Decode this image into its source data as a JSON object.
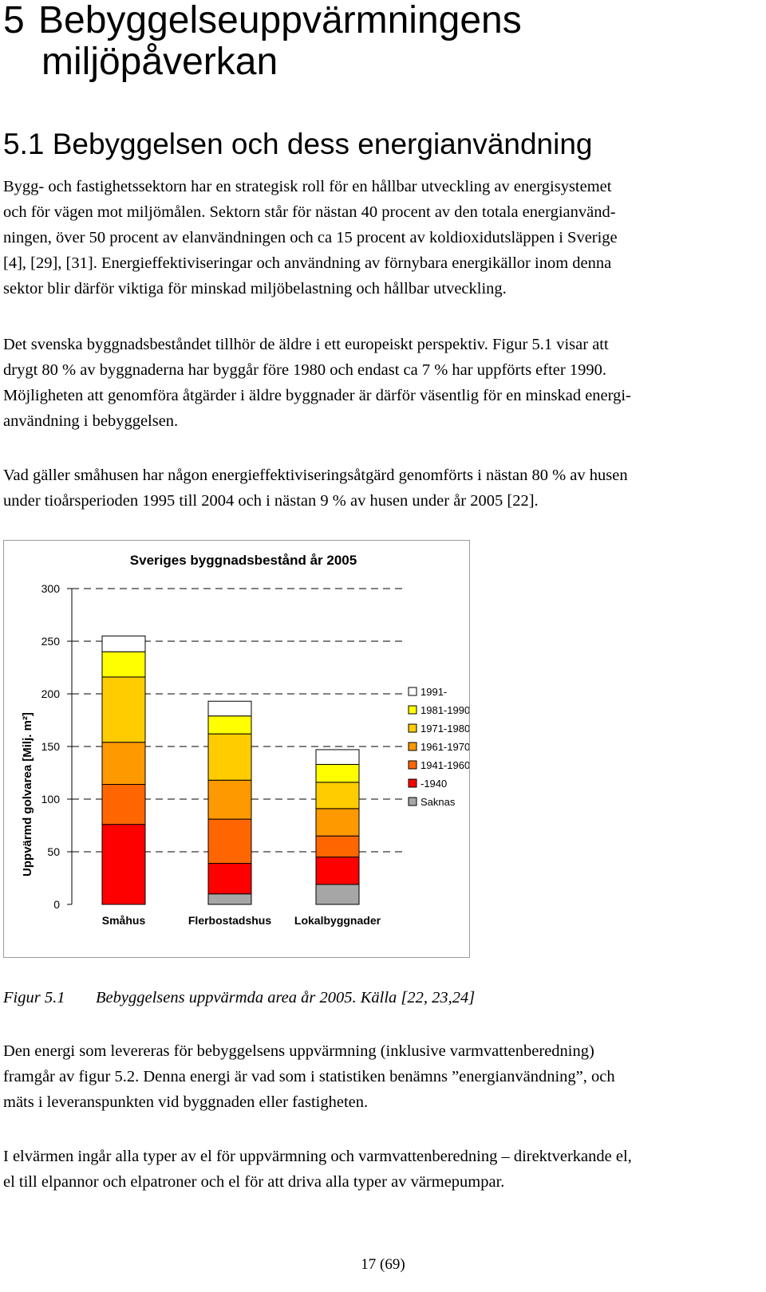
{
  "heading1": {
    "number": "5",
    "line1": "Bebyggelseuppvärmningens",
    "line2": "miljöpåverkan"
  },
  "heading2": "5.1 Bebyggelsen och dess energianvändning",
  "paragraphs": [
    [
      "Bygg- och fastighetssektorn har en strategisk roll för en hållbar utveckling av energisystemet",
      "och för vägen mot miljömålen. Sektorn står för nästan 40 procent av den totala energianvänd-",
      "ningen, över 50 procent av elanvändningen och ca 15 procent av koldioxidutsläppen i Sverige",
      "[4], [29], [31]. Energieffektiviseringar och användning av förnybara energikällor inom denna",
      "sektor blir därför viktiga för minskad miljöbelastning och hållbar utveckling."
    ],
    [
      "Det svenska byggnadsbeståndet tillhör de äldre i ett europeiskt perspektiv. Figur 5.1 visar att",
      "drygt 80 % av byggnaderna har byggår före 1980 och endast ca 7 % har uppförts efter 1990.",
      "Möjligheten att genomföra åtgärder i äldre byggnader är därför väsentlig för en minskad energi-",
      "användning i bebyggelsen."
    ],
    [
      "Vad gäller småhusen har någon energieffektiviseringsåtgärd genomförts i nästan 80 % av husen",
      "under tioårsperioden 1995 till 2004 och i nästan 9 % av husen under år 2005 [22]."
    ],
    [
      "Den energi som levereras för bebyggelsens uppvärmning (inklusive varmvattenberedning)",
      "framgår av figur 5.2. Denna energi är vad som i statistiken benämns ”energianvändning”, och",
      "mäts i leveranspunkten vid byggnaden eller fastigheten."
    ],
    [
      "I elvärmen ingår alla typer av el för uppvärmning och varmvattenberedning – direktverkande el,",
      "el till elpannor och elpatroner och el för att driva alla typer av värmepumpar."
    ]
  ],
  "caption": {
    "label": "Figur 5.1",
    "text": "Bebyggelsens uppvärmda area år 2005. Källa [22, 23,24]"
  },
  "page_number": "17 (69)",
  "chart_data": {
    "type": "bar",
    "stacked": true,
    "title": "Sveriges byggnadsbestånd år 2005",
    "xlabel": "",
    "ylabel": "Uppvärmd golvarea [Milj. m²]",
    "ylim": [
      0,
      300
    ],
    "yticks": [
      0,
      50,
      100,
      150,
      200,
      250,
      300
    ],
    "grid": true,
    "legend_position": "right",
    "categories": [
      "Småhus",
      "Flerbostadshus",
      "Lokalbyggnader"
    ],
    "series": [
      {
        "name": "Saknas",
        "color": "#a6a6a6",
        "values": [
          0,
          10,
          19
        ]
      },
      {
        "name": "-1940",
        "color": "#ff0000",
        "values": [
          76,
          29,
          26
        ]
      },
      {
        "name": "1941-1960",
        "color": "#ff6600",
        "values": [
          38,
          42,
          20
        ]
      },
      {
        "name": "1961-1970",
        "color": "#ff9900",
        "values": [
          40,
          37,
          26
        ]
      },
      {
        "name": "1971-1980",
        "color": "#ffcc00",
        "values": [
          62,
          44,
          25
        ]
      },
      {
        "name": "1981-1990",
        "color": "#ffff00",
        "values": [
          24,
          17,
          17
        ]
      },
      {
        "name": "1991-",
        "color": "#ffffff",
        "values": [
          15,
          14,
          14
        ]
      }
    ],
    "legend_order": [
      "1991-",
      "1981-1990",
      "1971-1980",
      "1961-1970",
      "1941-1960",
      "-1940",
      "Saknas"
    ]
  }
}
